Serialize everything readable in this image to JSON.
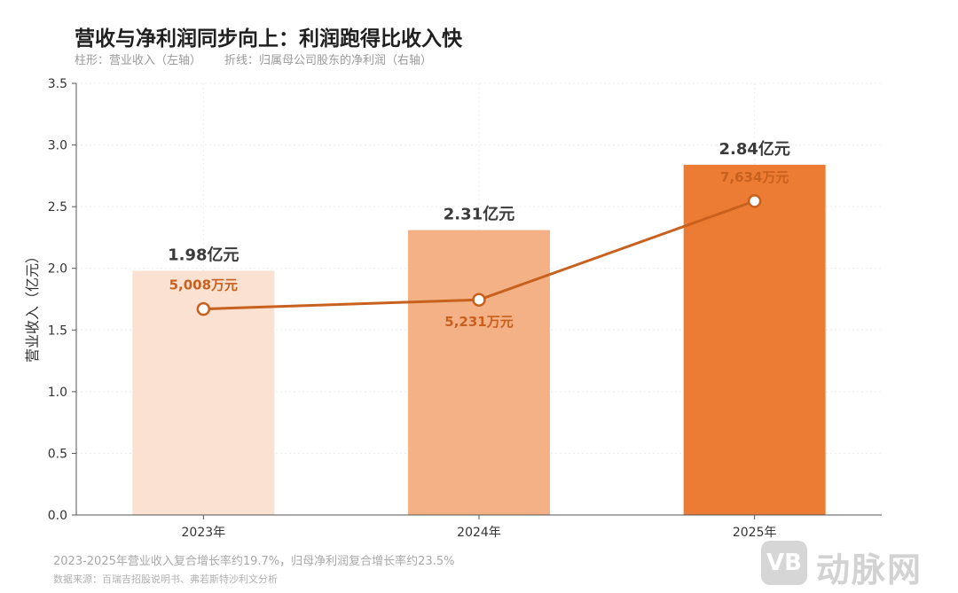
{
  "title": "营收与净利润同步向上：利润跑得比收入快",
  "subtitle_bar": "柱形：营业收入（左轴）",
  "subtitle_line": "折线：归属母公司股东的净利润（右轴）",
  "note": "2023-2025年营业收入复合增长率约19.7%，归母净利润复合增长率约23.5%",
  "source": "数据来源：百瑞吉招股说明书、弗若斯特沙利文分析",
  "logo": {
    "badge": "VB",
    "text": "动脉网"
  },
  "colors": {
    "bars": [
      "#fbe1d2",
      "#f3b185",
      "#ec7c33"
    ],
    "line": "#c8601e",
    "bar_label": "#3a3a3a",
    "line_label": "#c8601e"
  },
  "chart_data": {
    "type": "bar",
    "categories": [
      "2023年",
      "2024年",
      "2025年"
    ],
    "ylabel": "营业收入（亿元）",
    "ylim": [
      0,
      3.5
    ],
    "yticks": [
      0.0,
      0.5,
      1.0,
      1.5,
      2.0,
      2.5,
      3.0,
      3.5
    ],
    "ytick_labels": [
      "0.0",
      "0.5",
      "1.0",
      "1.5",
      "2.0",
      "2.5",
      "3.0",
      "3.5"
    ],
    "grid": true,
    "series": [
      {
        "kind": "bar",
        "values": [
          1.98,
          2.31,
          2.84
        ],
        "labels": [
          "1.98亿元",
          "2.31亿元",
          "2.84亿元"
        ]
      },
      {
        "kind": "line",
        "values": [
          5008,
          5231,
          7634
        ],
        "labels": [
          "5,008万元",
          "5,231万元",
          "7,634万元"
        ]
      }
    ],
    "line_plot_values": [
      1.67,
      1.745,
      2.545
    ]
  }
}
